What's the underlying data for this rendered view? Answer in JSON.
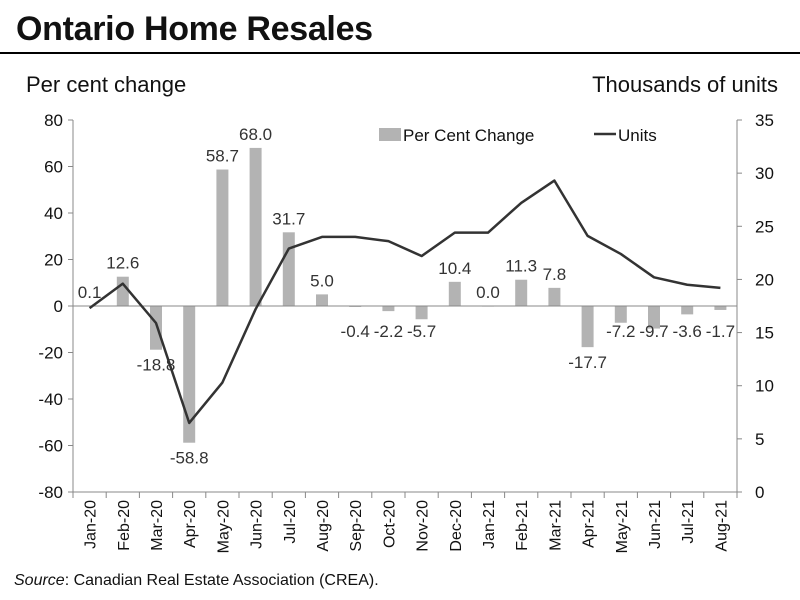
{
  "title": "Ontario Home Resales",
  "left_axis_title": "Per cent change",
  "right_axis_title": "Thousands of units",
  "source_label": "Source",
  "source_text": ": Canadian Real Estate Association (CREA).",
  "chart_data": {
    "type": "bar+line",
    "categories": [
      "Jan-20",
      "Feb-20",
      "Mar-20",
      "Apr-20",
      "May-20",
      "Jun-20",
      "Jul-20",
      "Aug-20",
      "Sep-20",
      "Oct-20",
      "Nov-20",
      "Dec-20",
      "Jan-21",
      "Feb-21",
      "Mar-21",
      "Apr-21",
      "May-21",
      "Jun-21",
      "Jul-21",
      "Aug-21"
    ],
    "series": [
      {
        "name": "Per Cent Change",
        "type": "bar",
        "axis": "left",
        "values": [
          0.1,
          12.6,
          -18.8,
          -58.8,
          58.7,
          68.0,
          31.7,
          5.0,
          -0.4,
          -2.2,
          -5.7,
          10.4,
          0.0,
          11.3,
          7.8,
          -17.7,
          -7.2,
          -9.7,
          -3.6,
          -1.7
        ],
        "labels": [
          "0.1",
          "12.6",
          "-18.8",
          "-58.8",
          "58.7",
          "68.0",
          "31.7",
          "5.0",
          "-0.4",
          "-2.2",
          "-5.7",
          "10.4",
          "0.0",
          "11.3",
          "7.8",
          "-17.7",
          "-7.2",
          "-9.7",
          "-3.6",
          "-1.7"
        ],
        "color": "#b3b3b3"
      },
      {
        "name": "Units",
        "type": "line",
        "axis": "right",
        "values": [
          17.3,
          19.6,
          15.9,
          6.5,
          10.3,
          17.2,
          22.9,
          24.0,
          24.0,
          23.6,
          22.2,
          24.4,
          24.4,
          27.2,
          29.3,
          24.1,
          22.4,
          20.2,
          19.5,
          19.2
        ],
        "color": "#333333"
      }
    ],
    "left_axis": {
      "min": -80,
      "max": 80,
      "ticks": [
        80,
        60,
        40,
        20,
        0,
        -20,
        -40,
        -60,
        -80
      ]
    },
    "right_axis": {
      "min": 0,
      "max": 35,
      "ticks": [
        35,
        30,
        25,
        20,
        15,
        10,
        5,
        0
      ]
    },
    "legend_position": "top-center",
    "grid": false
  }
}
